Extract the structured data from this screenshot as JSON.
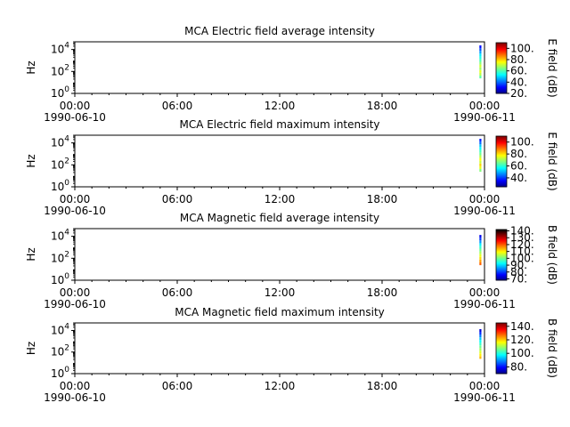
{
  "chart_data": [
    {
      "type": "heatmap",
      "title": "MCA  Electric field average intensity",
      "ylabel": "Hz",
      "colorbar_label": "E field (dB)",
      "colorbar_ticks": [
        "20.",
        "40.",
        "60.",
        "80.",
        "100."
      ],
      "colorbar_range": [
        20,
        110
      ],
      "colormap": "jet",
      "xticks": [
        {
          "time": "00:00",
          "date": "1990-06-10"
        },
        {
          "time": "06:00",
          "date": ""
        },
        {
          "time": "12:00",
          "date": ""
        },
        {
          "time": "18:00",
          "date": ""
        },
        {
          "time": "00:00",
          "date": "1990-06-11"
        }
      ],
      "x_range": [
        "1990-06-10T00:00",
        "1990-06-11T00:00"
      ],
      "y_scale": "log",
      "yticks": [
        "10^0",
        "10^2",
        "10^4"
      ],
      "y_range": [
        1,
        50000
      ],
      "data_strip": {
        "time_start": "1990-06-10T23:42",
        "time_end": "1990-06-10T23:49",
        "cells": [
          {
            "freq": 31,
            "value": 62
          },
          {
            "freq": 56,
            "value": 70
          },
          {
            "freq": 100,
            "value": 74
          },
          {
            "freq": 178,
            "value": 68
          },
          {
            "freq": 316,
            "value": 72
          },
          {
            "freq": 562,
            "value": 66
          },
          {
            "freq": 1000,
            "value": 60
          },
          {
            "freq": 1780,
            "value": 56
          },
          {
            "freq": 3160,
            "value": 52
          },
          {
            "freq": 5620,
            "value": 45
          },
          {
            "freq": 10000,
            "value": 38
          },
          {
            "freq": 17800,
            "value": 32
          }
        ]
      }
    },
    {
      "type": "heatmap",
      "title": "MCA  Electric field maximum intensity",
      "ylabel": "Hz",
      "colorbar_label": "E field (dB)",
      "colorbar_ticks": [
        "40.",
        "60.",
        "80.",
        "100."
      ],
      "colorbar_range": [
        25,
        110
      ],
      "colormap": "jet",
      "xticks": [
        {
          "time": "00:00",
          "date": "1990-06-10"
        },
        {
          "time": "06:00",
          "date": ""
        },
        {
          "time": "12:00",
          "date": ""
        },
        {
          "time": "18:00",
          "date": ""
        },
        {
          "time": "00:00",
          "date": "1990-06-11"
        }
      ],
      "x_range": [
        "1990-06-10T00:00",
        "1990-06-11T00:00"
      ],
      "y_scale": "log",
      "yticks": [
        "10^0",
        "10^2",
        "10^4"
      ],
      "y_range": [
        1,
        50000
      ],
      "data_strip": {
        "time_start": "1990-06-10T23:42",
        "time_end": "1990-06-10T23:49",
        "cells": [
          {
            "freq": 31,
            "value": 68
          },
          {
            "freq": 56,
            "value": 76
          },
          {
            "freq": 100,
            "value": 82
          },
          {
            "freq": 178,
            "value": 74
          },
          {
            "freq": 316,
            "value": 78
          },
          {
            "freq": 562,
            "value": 72
          },
          {
            "freq": 1000,
            "value": 66
          },
          {
            "freq": 1780,
            "value": 62
          },
          {
            "freq": 3160,
            "value": 57
          },
          {
            "freq": 5620,
            "value": 52
          },
          {
            "freq": 10000,
            "value": 44
          },
          {
            "freq": 17800,
            "value": 38
          }
        ]
      }
    },
    {
      "type": "heatmap",
      "title": "MCA  Magnetic field average intensity",
      "ylabel": "Hz",
      "colorbar_label": "B field (dB)",
      "colorbar_ticks": [
        "70.",
        "80.",
        "90.",
        "100.",
        "110.",
        "120.",
        "130.",
        "140."
      ],
      "colorbar_range": [
        68,
        142
      ],
      "colormap": "jet-black",
      "xticks": [
        {
          "time": "00:00",
          "date": "1990-06-10"
        },
        {
          "time": "06:00",
          "date": ""
        },
        {
          "time": "12:00",
          "date": ""
        },
        {
          "time": "18:00",
          "date": ""
        },
        {
          "time": "00:00",
          "date": "1990-06-11"
        }
      ],
      "x_range": [
        "1990-06-10T00:00",
        "1990-06-11T00:00"
      ],
      "y_scale": "log",
      "yticks": [
        "10^0",
        "10^2",
        "10^4"
      ],
      "y_range": [
        1,
        50000
      ],
      "data_strip": {
        "time_start": "1990-06-10T23:42",
        "time_end": "1990-06-10T23:49",
        "cells": [
          {
            "freq": 31,
            "value": 120
          },
          {
            "freq": 56,
            "value": 116
          },
          {
            "freq": 100,
            "value": 112
          },
          {
            "freq": 178,
            "value": 108
          },
          {
            "freq": 316,
            "value": 104
          },
          {
            "freq": 562,
            "value": 100
          },
          {
            "freq": 1000,
            "value": 96
          },
          {
            "freq": 1780,
            "value": 92
          },
          {
            "freq": 3160,
            "value": 86
          },
          {
            "freq": 5620,
            "value": 80
          },
          {
            "freq": 10000,
            "value": 75
          }
        ]
      }
    },
    {
      "type": "heatmap",
      "title": "MCA  Magnetic field maximum intensity",
      "ylabel": "Hz",
      "colorbar_label": "B field (dB)",
      "colorbar_ticks": [
        "80.",
        "100.",
        "120.",
        "140."
      ],
      "colorbar_range": [
        70,
        145
      ],
      "colormap": "jet",
      "xticks": [
        {
          "time": "00:00",
          "date": "1990-06-10"
        },
        {
          "time": "06:00",
          "date": ""
        },
        {
          "time": "12:00",
          "date": ""
        },
        {
          "time": "18:00",
          "date": ""
        },
        {
          "time": "00:00",
          "date": "1990-06-11"
        }
      ],
      "x_range": [
        "1990-06-10T00:00",
        "1990-06-11T00:00"
      ],
      "y_scale": "log",
      "yticks": [
        "10^0",
        "10^2",
        "10^4"
      ],
      "y_range": [
        1,
        50000
      ],
      "data_strip": {
        "time_start": "1990-06-10T23:42",
        "time_end": "1990-06-10T23:49",
        "cells": [
          {
            "freq": 31,
            "value": 122
          },
          {
            "freq": 56,
            "value": 118
          },
          {
            "freq": 100,
            "value": 114
          },
          {
            "freq": 178,
            "value": 110
          },
          {
            "freq": 316,
            "value": 106
          },
          {
            "freq": 562,
            "value": 102
          },
          {
            "freq": 1000,
            "value": 98
          },
          {
            "freq": 1780,
            "value": 94
          },
          {
            "freq": 3160,
            "value": 88
          },
          {
            "freq": 5620,
            "value": 82
          },
          {
            "freq": 10000,
            "value": 76
          }
        ]
      }
    }
  ]
}
